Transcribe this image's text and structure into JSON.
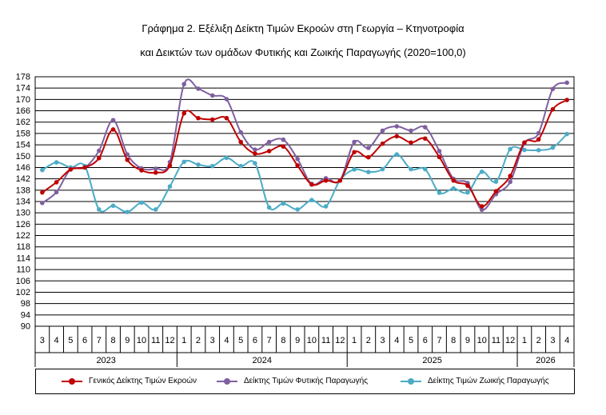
{
  "chart_data": {
    "type": "line",
    "title": "Γράφημα 2. Εξέλιξη Δείκτη Τιμών Εκροών στη Γεωργία – Κτηνοτροφία",
    "subtitle": "και Δεικτών των ομάδων Φυτικής και Ζωικής Παραγωγής (2020=100,0)",
    "ylim": [
      90,
      178
    ],
    "ytick_step": 4,
    "grid": true,
    "legend_position": "bottom",
    "x_months": [
      "3",
      "4",
      "5",
      "6",
      "7",
      "8",
      "9",
      "10",
      "11",
      "12",
      "1",
      "2",
      "3",
      "4",
      "5",
      "6",
      "7",
      "8",
      "9",
      "10",
      "11",
      "12",
      "1",
      "2",
      "3",
      "4",
      "5",
      "6",
      "7",
      "8",
      "9",
      "10",
      "11",
      "12",
      "1",
      "2",
      "3",
      "4"
    ],
    "x_years": [
      {
        "label": "2023",
        "count": 10
      },
      {
        "label": "2024",
        "count": 12
      },
      {
        "label": "2025",
        "count": 12
      },
      {
        "label": "2026",
        "count": 4
      }
    ],
    "series": [
      {
        "name": "Γενικός Δείκτης Τιμών Εκροών",
        "color": "#C00000",
        "values": [
          137.2,
          140.8,
          145.3,
          146.0,
          149.3,
          159.4,
          148.7,
          145.0,
          144.2,
          146.7,
          165.1,
          163.4,
          162.9,
          163.4,
          155.0,
          150.9,
          151.8,
          153.4,
          146.7,
          140.0,
          141.4,
          141.4,
          151.4,
          149.6,
          154.4,
          157.0,
          154.8,
          156.2,
          149.7,
          141.4,
          139.6,
          132.3,
          137.6,
          143.0,
          154.8,
          155.9,
          166.5,
          169.8
        ]
      },
      {
        "name": "Δείκτης Τιμών Φυτικής Παραγωγής",
        "color": "#7F5FA0",
        "values": [
          133.5,
          137.3,
          145.4,
          146.0,
          151.9,
          162.7,
          150.6,
          145.7,
          145.6,
          147.9,
          175.4,
          173.8,
          171.4,
          170.1,
          158.4,
          152.3,
          155.0,
          155.8,
          149.0,
          140.2,
          142.2,
          141.4,
          155.0,
          152.9,
          159.0,
          160.5,
          159.0,
          160.2,
          151.8,
          142.0,
          140.5,
          131.1,
          136.6,
          140.9,
          154.4,
          158.1,
          173.7,
          175.9
        ]
      },
      {
        "name": "Δείκτης Τιμών Ζωικής Παραγωγής",
        "color": "#4BACC6",
        "values": [
          145.1,
          147.8,
          146.0,
          146.5,
          131.2,
          132.5,
          130.3,
          133.6,
          131.2,
          139.3,
          148.0,
          147.0,
          146.5,
          149.4,
          146.5,
          147.5,
          131.9,
          133.3,
          131.2,
          134.5,
          132.3,
          141.5,
          145.3,
          144.4,
          145.4,
          150.6,
          145.4,
          145.4,
          137.1,
          138.6,
          137.2,
          144.5,
          141.0,
          152.5,
          152.2,
          152.1,
          153.0,
          157.8
        ]
      }
    ]
  }
}
